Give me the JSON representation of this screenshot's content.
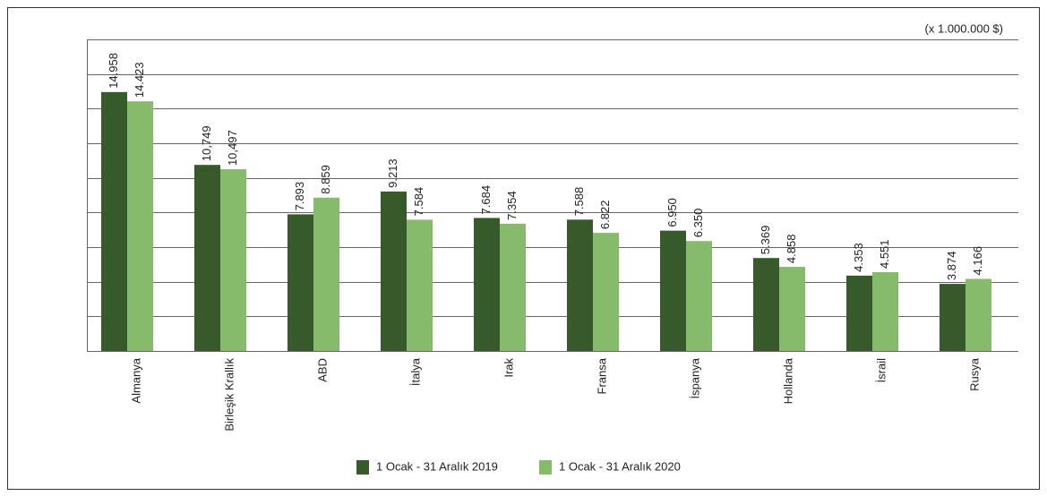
{
  "chart_data": {
    "type": "bar",
    "unit_note": "(x 1.000.000 $)",
    "categories": [
      "Almanya",
      "Birleşik Krallık",
      "ABD",
      "İtalya",
      "Irak",
      "Fransa",
      "İspanya",
      "Hollanda",
      "İsrail",
      "Rusya"
    ],
    "series": [
      {
        "name": "1 Ocak - 31 Aralık 2019",
        "color": "#375a2a",
        "values": [
          14958,
          10749,
          7893,
          9213,
          7684,
          7588,
          6950,
          5369,
          4353,
          3874
        ],
        "value_labels": [
          "14.958",
          "10,749",
          "7.893",
          "9.213",
          "7.684",
          "7.588",
          "6.950",
          "5.369",
          "4.353",
          "3.874"
        ]
      },
      {
        "name": "1 Ocak - 31 Aralık 2020",
        "color": "#86bb6b",
        "values": [
          14423,
          10497,
          8859,
          7584,
          7354,
          6822,
          6350,
          4858,
          4551,
          4166
        ],
        "value_labels": [
          "14.423",
          "10,497",
          "8.859",
          "7.584",
          "7.354",
          "6.822",
          "6.350",
          "4.858",
          "4.551",
          "4.166"
        ]
      }
    ],
    "ylim": [
      0,
      18000
    ],
    "yticks": [
      0,
      2000,
      4000,
      6000,
      8000,
      10000,
      12000,
      14000,
      16000,
      18000
    ],
    "grid": true,
    "legend": "bottom"
  }
}
